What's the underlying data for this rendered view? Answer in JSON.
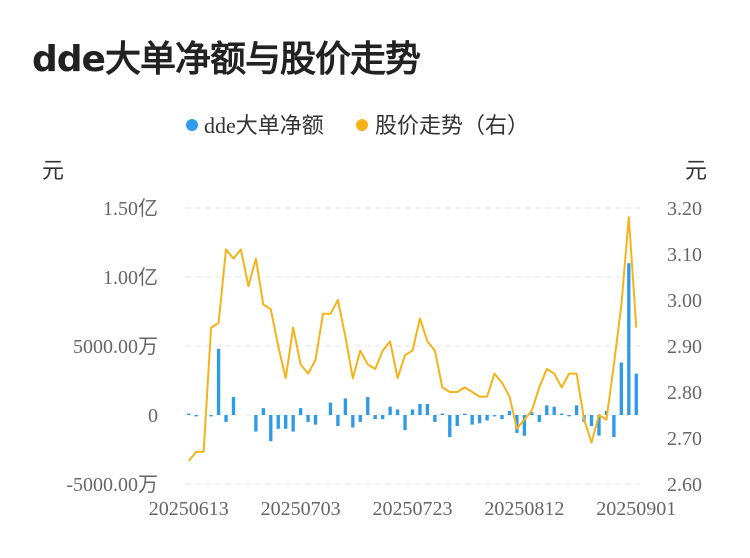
{
  "title": "dde大单净额与股价走势",
  "chart_data": {
    "type": "bar+line",
    "legend": [
      {
        "label": "dde大单净额",
        "color": "#2f9be8"
      },
      {
        "label": "股价走势（右）",
        "color": "#f5b31a"
      }
    ],
    "left_unit": "元",
    "right_unit": "元",
    "left_ticks": [
      {
        "value": -50000000,
        "label": "-5000.00万"
      },
      {
        "value": 0,
        "label": "0"
      },
      {
        "value": 50000000,
        "label": "5000.00万"
      },
      {
        "value": 100000000,
        "label": "1.00亿"
      },
      {
        "value": 150000000,
        "label": "1.50亿"
      }
    ],
    "left_ylim": [
      -50000000,
      150000000
    ],
    "right_ticks": [
      "2.60",
      "2.70",
      "2.80",
      "2.90",
      "3.00",
      "3.10",
      "3.20"
    ],
    "right_ylim": [
      2.6,
      3.2
    ],
    "x_tick_labels": [
      "20250613",
      "20250703",
      "20250723",
      "20250812",
      "20250901"
    ],
    "grid": "horizontal dashed",
    "series": [
      {
        "name": "dde大单净额",
        "kind": "bar",
        "axis": "left",
        "values": [
          1000000,
          -1000000,
          0,
          -1000000,
          48000000,
          -5000000,
          13000000,
          0,
          0,
          -12000000,
          5000000,
          -19000000,
          -10000000,
          -10000000,
          -12000000,
          5000000,
          -5000000,
          -7000000,
          0,
          9000000,
          -8000000,
          12000000,
          -9000000,
          -5000000,
          13000000,
          -3000000,
          -3000000,
          6000000,
          4000000,
          -11000000,
          4000000,
          8000000,
          8000000,
          -5000000,
          1000000,
          -16000000,
          -8000000,
          1000000,
          -7000000,
          -6000000,
          -4000000,
          -1000000,
          -3000000,
          3000000,
          -13000000,
          -15000000,
          2000000,
          -5000000,
          7000000,
          6000000,
          1000000,
          -1000000,
          7000000,
          -5000000,
          -8000000,
          -15000000,
          3000000,
          -16000000,
          38000000,
          110000000,
          30000000
        ]
      },
      {
        "name": "股价走势（右）",
        "kind": "line",
        "axis": "right",
        "values": [
          2.65,
          2.67,
          2.67,
          2.94,
          2.95,
          3.11,
          3.09,
          3.11,
          3.03,
          3.09,
          2.99,
          2.98,
          2.9,
          2.83,
          2.94,
          2.86,
          2.84,
          2.87,
          2.97,
          2.97,
          3.0,
          2.92,
          2.83,
          2.89,
          2.86,
          2.85,
          2.89,
          2.91,
          2.83,
          2.88,
          2.89,
          2.96,
          2.91,
          2.89,
          2.81,
          2.8,
          2.8,
          2.81,
          2.8,
          2.79,
          2.79,
          2.84,
          2.82,
          2.79,
          2.72,
          2.74,
          2.76,
          2.81,
          2.85,
          2.84,
          2.81,
          2.84,
          2.84,
          2.74,
          2.69,
          2.75,
          2.74,
          2.86,
          2.99,
          3.18,
          2.94
        ]
      }
    ]
  }
}
